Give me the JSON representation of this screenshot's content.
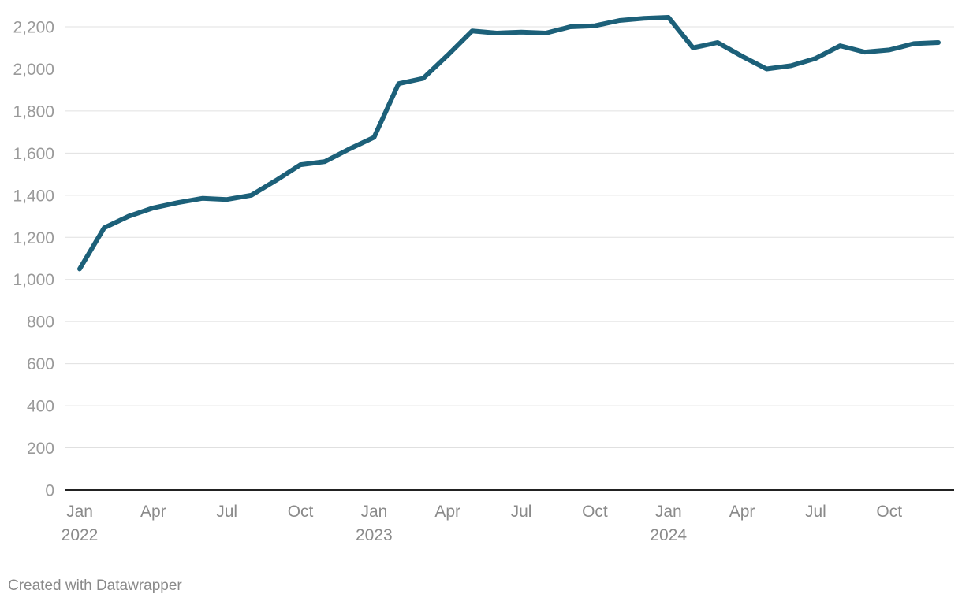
{
  "chart_data": {
    "type": "line",
    "title": "",
    "xlabel": "",
    "ylabel": "",
    "ylim": [
      0,
      2200
    ],
    "y_ticks": [
      "0",
      "200",
      "400",
      "600",
      "800",
      "1,000",
      "1,200",
      "1,400",
      "1,600",
      "1,800",
      "2,000",
      "2,200"
    ],
    "x_ticks": [
      {
        "x": "2022-01",
        "label": "Jan",
        "year": "2022"
      },
      {
        "x": "2022-04",
        "label": "Apr",
        "year": ""
      },
      {
        "x": "2022-07",
        "label": "Jul",
        "year": ""
      },
      {
        "x": "2022-10",
        "label": "Oct",
        "year": ""
      },
      {
        "x": "2023-01",
        "label": "Jan",
        "year": "2023"
      },
      {
        "x": "2023-04",
        "label": "Apr",
        "year": ""
      },
      {
        "x": "2023-07",
        "label": "Jul",
        "year": ""
      },
      {
        "x": "2023-10",
        "label": "Oct",
        "year": ""
      },
      {
        "x": "2024-01",
        "label": "Jan",
        "year": "2024"
      },
      {
        "x": "2024-04",
        "label": "Apr",
        "year": ""
      },
      {
        "x": "2024-07",
        "label": "Jul",
        "year": ""
      },
      {
        "x": "2024-10",
        "label": "Oct",
        "year": ""
      }
    ],
    "grid": true,
    "legend": "none",
    "series": [
      {
        "color": "#1c6079",
        "x": [
          "2022-01",
          "2022-02",
          "2022-03",
          "2022-04",
          "2022-05",
          "2022-06",
          "2022-07",
          "2022-08",
          "2022-09",
          "2022-10",
          "2022-11",
          "2022-12",
          "2023-01",
          "2023-02",
          "2023-03",
          "2023-04",
          "2023-05",
          "2023-06",
          "2023-07",
          "2023-08",
          "2023-09",
          "2023-10",
          "2023-11",
          "2023-12",
          "2024-01",
          "2024-02",
          "2024-03",
          "2024-04",
          "2024-05",
          "2024-06",
          "2024-07",
          "2024-08",
          "2024-09",
          "2024-10",
          "2024-11",
          "2024-12"
        ],
        "values": [
          1050,
          1245,
          1300,
          1340,
          1365,
          1385,
          1380,
          1400,
          1470,
          1545,
          1560,
          1620,
          1675,
          1930,
          1955,
          2065,
          2180,
          2170,
          2175,
          2170,
          2200,
          2205,
          2230,
          2240,
          2245,
          2100,
          2125,
          2060,
          2000,
          2015,
          2050,
          2110,
          2080,
          2090,
          2120,
          2125
        ]
      }
    ]
  },
  "footer": {
    "credit": "Created with Datawrapper"
  }
}
